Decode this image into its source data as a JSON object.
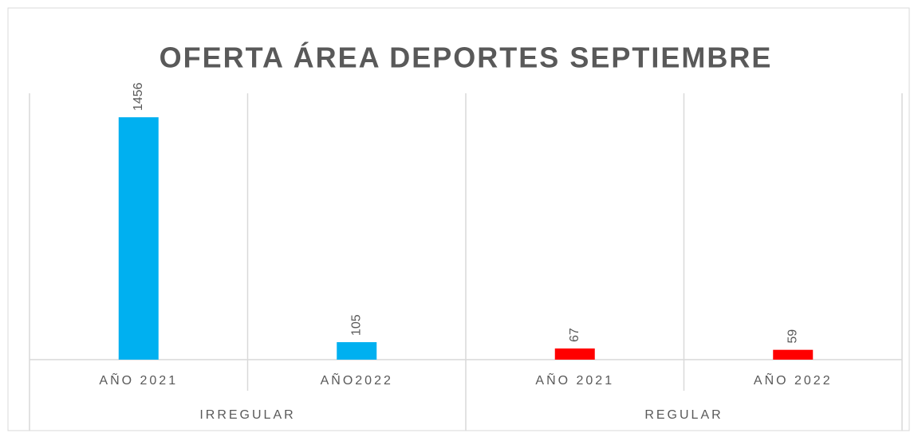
{
  "chart_data": {
    "type": "bar",
    "title": "OFERTA ÁREA DEPORTES SEPTIEMBRE",
    "groups": [
      {
        "label": "IRREGULAR",
        "categories": [
          "AÑO 2021",
          "AÑO2022"
        ],
        "values": [
          1456,
          105
        ],
        "color": "#00b0f0"
      },
      {
        "label": "REGULAR",
        "categories": [
          "AÑO 2021",
          "AÑO 2022"
        ],
        "values": [
          67,
          59
        ],
        "color": "#ff0000"
      }
    ],
    "ylim": [
      0,
      1600
    ]
  }
}
